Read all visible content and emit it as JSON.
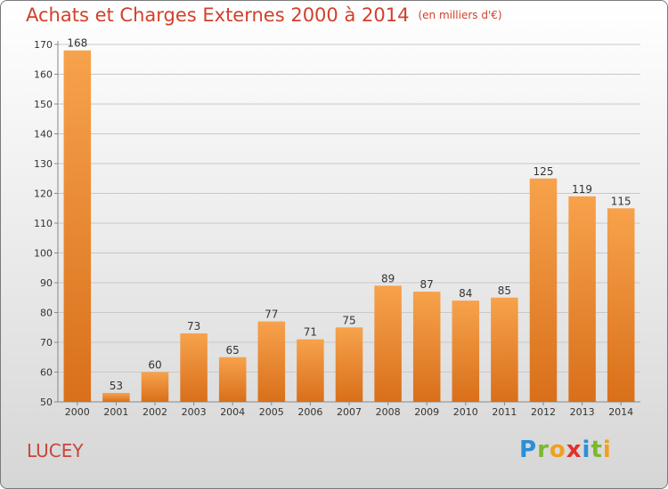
{
  "title": "Achats et Charges Externes 2000 à 2014",
  "subtitle": "(en milliers d'€)",
  "location": "LUCEY",
  "logo": {
    "letters": [
      "P",
      "r",
      "o",
      "x",
      "i",
      "t",
      "i"
    ],
    "colors": [
      "#2a8fd8",
      "#7cb82f",
      "#f0a020",
      "#e0322b",
      "#2a8fd8",
      "#7cb82f",
      "#f0a020"
    ]
  },
  "chart_data": {
    "type": "bar",
    "categories": [
      "2000",
      "2001",
      "2002",
      "2003",
      "2004",
      "2005",
      "2006",
      "2007",
      "2008",
      "2009",
      "2010",
      "2011",
      "2012",
      "2013",
      "2014"
    ],
    "values": [
      168,
      53,
      60,
      73,
      65,
      77,
      71,
      75,
      89,
      87,
      84,
      85,
      125,
      119,
      115
    ],
    "ylim": [
      50,
      170
    ],
    "yticks": [
      50,
      60,
      70,
      80,
      90,
      100,
      110,
      120,
      130,
      140,
      150,
      160,
      170
    ],
    "grid": true,
    "bar_color_light": "#f7a24c",
    "bar_color_dark": "#d96f1a",
    "xlabel": "",
    "ylabel": ""
  }
}
